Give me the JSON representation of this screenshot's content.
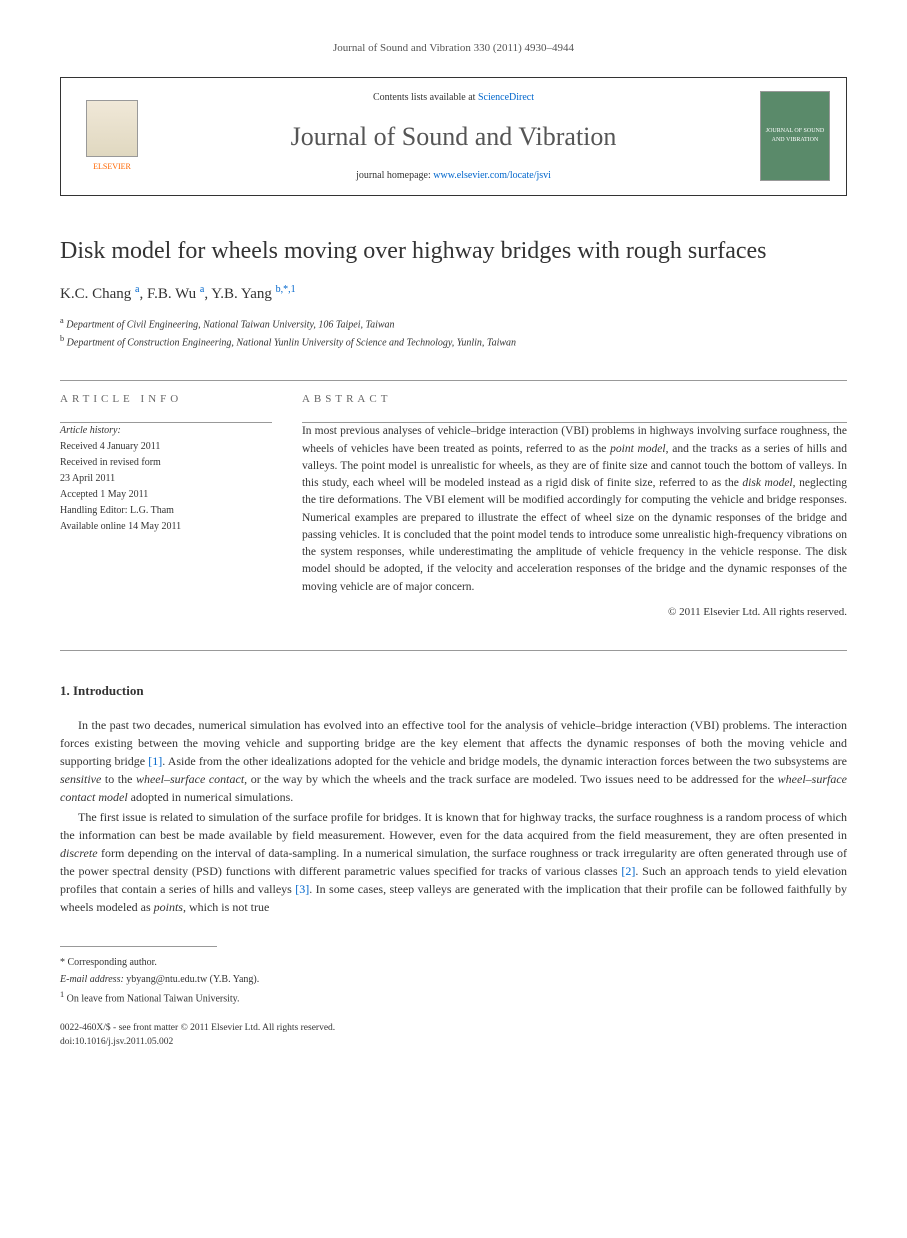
{
  "header": {
    "citation": "Journal of Sound and Vibration 330 (2011) 4930–4944"
  },
  "banner": {
    "publisher": "ELSEVIER",
    "contents_prefix": "Contents lists available at ",
    "contents_link": "ScienceDirect",
    "journal_name": "Journal of Sound and Vibration",
    "homepage_prefix": "journal homepage: ",
    "homepage_url": "www.elsevier.com/locate/jsvi",
    "cover_text": "JOURNAL OF SOUND AND VIBRATION"
  },
  "article": {
    "title": "Disk model for wheels moving over highway bridges with rough surfaces",
    "authors_html": "K.C. Chang <sup>a</sup>, F.B. Wu <sup>a</sup>, Y.B. Yang <sup>b,*,1</sup>",
    "affiliations": {
      "a": "Department of Civil Engineering, National Taiwan University, 106 Taipei, Taiwan",
      "b": "Department of Construction Engineering, National Yunlin University of Science and Technology, Yunlin, Taiwan"
    }
  },
  "info": {
    "heading": "ARTICLE INFO",
    "history_label": "Article history:",
    "received": "Received 4 January 2011",
    "revised_line1": "Received in revised form",
    "revised_line2": "23 April 2011",
    "accepted": "Accepted 1 May 2011",
    "editor": "Handling Editor: L.G. Tham",
    "online": "Available online 14 May 2011"
  },
  "abstract": {
    "heading": "ABSTRACT",
    "text": "In most previous analyses of vehicle–bridge interaction (VBI) problems in highways involving surface roughness, the wheels of vehicles have been treated as points, referred to as the point model, and the tracks as a series of hills and valleys. The point model is unrealistic for wheels, as they are of finite size and cannot touch the bottom of valleys. In this study, each wheel will be modeled instead as a rigid disk of finite size, referred to as the disk model, neglecting the tire deformations. The VBI element will be modified accordingly for computing the vehicle and bridge responses. Numerical examples are prepared to illustrate the effect of wheel size on the dynamic responses of the bridge and passing vehicles. It is concluded that the point model tends to introduce some unrealistic high-frequency vibrations on the system responses, while underestimating the amplitude of vehicle frequency in the vehicle response. The disk model should be adopted, if the velocity and acceleration responses of the bridge and the dynamic responses of the moving vehicle are of major concern.",
    "copyright": "© 2011 Elsevier Ltd. All rights reserved."
  },
  "sections": {
    "intro_heading": "1. Introduction",
    "intro_p1": "In the past two decades, numerical simulation has evolved into an effective tool for the analysis of vehicle–bridge interaction (VBI) problems. The interaction forces existing between the moving vehicle and supporting bridge are the key element that affects the dynamic responses of both the moving vehicle and supporting bridge [1]. Aside from the other idealizations adopted for the vehicle and bridge models, the dynamic interaction forces between the two subsystems are sensitive to the wheel–surface contact, or the way by which the wheels and the track surface are modeled. Two issues need to be addressed for the wheel–surface contact model adopted in numerical simulations.",
    "intro_p2": "The first issue is related to simulation of the surface profile for bridges. It is known that for highway tracks, the surface roughness is a random process of which the information can best be made available by field measurement. However, even for the data acquired from the field measurement, they are often presented in discrete form depending on the interval of data-sampling. In a numerical simulation, the surface roughness or track irregularity are often generated through use of the power spectral density (PSD) functions with different parametric values specified for tracks of various classes [2]. Such an approach tends to yield elevation profiles that contain a series of hills and valleys [3]. In some cases, steep valleys are generated with the implication that their profile can be followed faithfully by wheels modeled as points, which is not true"
  },
  "footnotes": {
    "corr": "* Corresponding author.",
    "email_label": "E-mail address:",
    "email": "ybyang@ntu.edu.tw (Y.B. Yang).",
    "note1": "On leave from National Taiwan University."
  },
  "footer": {
    "line1": "0022-460X/$ - see front matter © 2011 Elsevier Ltd. All rights reserved.",
    "line2": "doi:10.1016/j.jsv.2011.05.002"
  },
  "styling": {
    "link_color": "#0066cc",
    "text_color": "#333333",
    "publisher_color": "#ff6600",
    "cover_bg": "#5a8a6a",
    "body_fontsize": 12,
    "abstract_fontsize": 11.5,
    "title_fontsize": 24,
    "journal_name_fontsize": 26
  }
}
